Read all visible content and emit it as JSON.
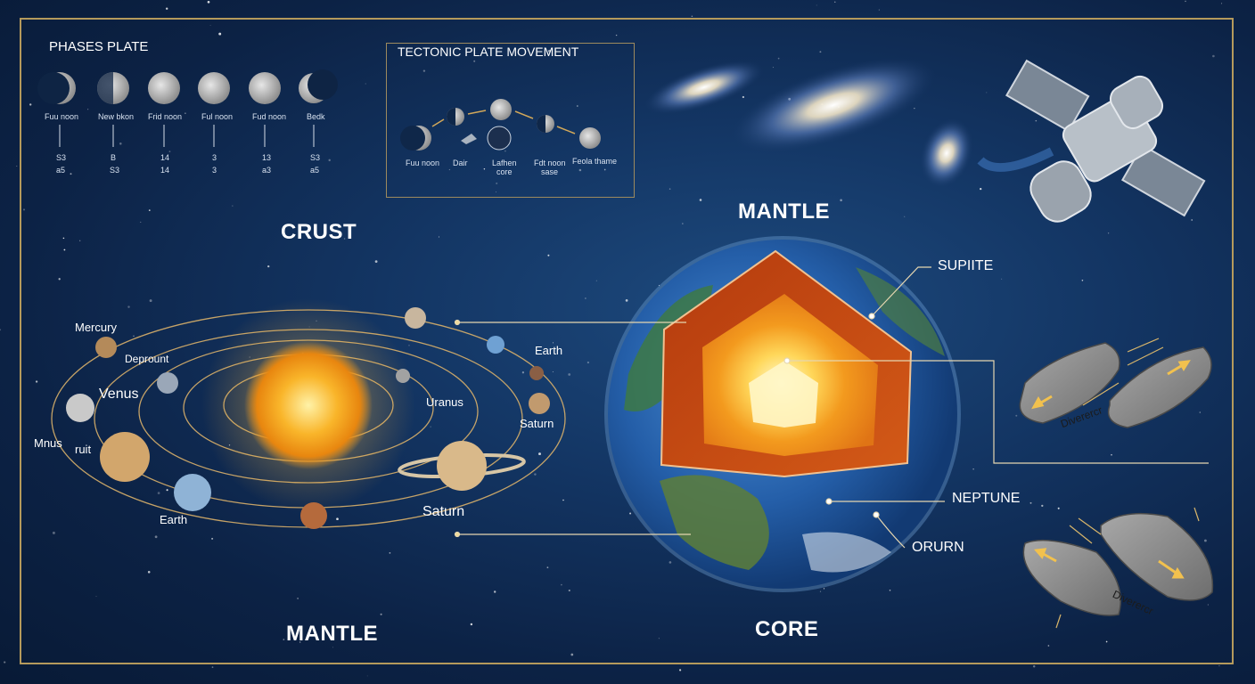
{
  "phases": {
    "title": "PHASES PLATE",
    "items": [
      {
        "label": "Fuu noon",
        "n1": "S3",
        "n2": "a5"
      },
      {
        "label": "New bkon",
        "n1": "B",
        "n2": "S3"
      },
      {
        "label": "Frid noon",
        "n1": "14",
        "n2": "14"
      },
      {
        "label": "Ful noon",
        "n1": "3",
        "n2": "3"
      },
      {
        "label": "Fud noon",
        "n1": "13",
        "n2": "a3"
      },
      {
        "label": "Bedk",
        "n1": "S3",
        "n2": "a5"
      }
    ]
  },
  "tectonic": {
    "title": "TECTONIC PLATE MOVEMENT",
    "labels": [
      "Fuu noon",
      "Dair",
      "Lafhen",
      "core",
      "Fdt noon",
      "sase",
      "Feola thame"
    ]
  },
  "headings": {
    "crust": "CRUST",
    "mantle_top": "MANTLE",
    "mantle_bottom": "MANTLE",
    "core": "CORE"
  },
  "solar_system": {
    "labels": {
      "mercury": "Mercury",
      "deprount": "Deprount",
      "venus": "Venus",
      "mnus": "Mnus",
      "tuit": "ruit",
      "earth_left": "Earth",
      "earth_right": "Earth",
      "uranus": "Uranus",
      "saturn_right": "Saturn",
      "saturn_bottom": "Saturn"
    }
  },
  "earth_callouts": {
    "supiite": "SUPIITE",
    "neptune": "NEPTUNE",
    "orurn": "ORURN"
  },
  "plates": {
    "top_label": "Diverercr",
    "bottom_label": "Diverercr"
  },
  "colors": {
    "frame": "#b59a5c",
    "sun": "#f6a51f",
    "core_outer": "#c64a14",
    "core_inner": "#ffe27a",
    "ocean": "#2c6bbd"
  }
}
